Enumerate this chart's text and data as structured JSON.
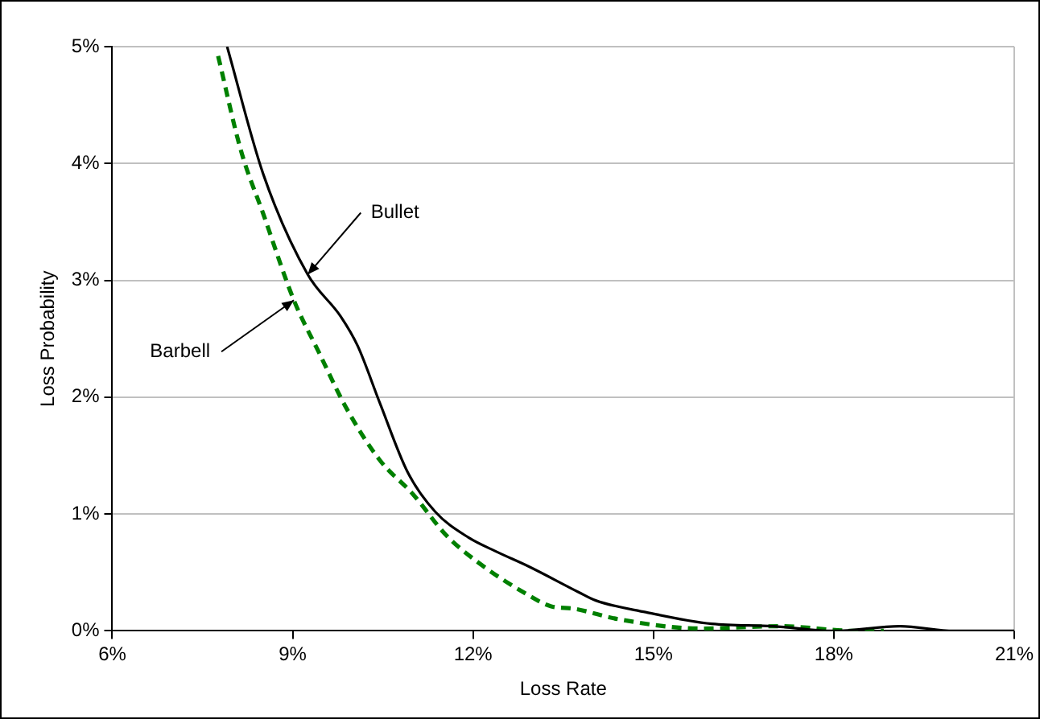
{
  "chart_data": {
    "type": "line",
    "xlabel": "Loss Rate",
    "ylabel": "Loss Probability",
    "xlim": [
      6,
      21
    ],
    "xticks": [
      {
        "value": 6,
        "label": "6%"
      },
      {
        "value": 9,
        "label": "9%"
      },
      {
        "value": 12,
        "label": "12%"
      },
      {
        "value": 15,
        "label": "15%"
      },
      {
        "value": 18,
        "label": "18%"
      },
      {
        "value": 21,
        "label": "21%"
      }
    ],
    "ylim": [
      0,
      5
    ],
    "yticks": [
      {
        "value": 0,
        "label": "0%"
      },
      {
        "value": 1,
        "label": "1%"
      },
      {
        "value": 2,
        "label": "2%"
      },
      {
        "value": 3,
        "label": "3%"
      },
      {
        "value": 4,
        "label": "4%"
      },
      {
        "value": 5,
        "label": "5%"
      }
    ],
    "grid": "y",
    "legend": false,
    "marker": "none",
    "series": [
      {
        "color": "#000000",
        "line_style": "solid",
        "x": [
          7.91,
          8.51,
          9.25,
          9.8,
          10.08,
          10.45,
          10.91,
          11.37,
          11.92,
          12.38,
          12.93,
          13.76,
          14.04,
          14.87,
          15.97,
          16.99,
          18.0,
          19.1,
          20.0,
          21.0
        ],
        "values": [
          5,
          3.91,
          3.05,
          2.69,
          2.44,
          1.95,
          1.36,
          1.02,
          0.8,
          0.68,
          0.55,
          0.33,
          0.26,
          0.16,
          0.06,
          0.04,
          0,
          0.04,
          0,
          0
        ]
      },
      {
        "color": "#008000",
        "line_style": "dashed",
        "x": [
          7.76,
          8.14,
          8.51,
          9.02,
          9.43,
          9.9,
          10.45,
          11.0,
          11.55,
          12.1,
          12.84,
          13.3,
          13.67,
          14.41,
          15.79,
          17.08,
          18.37,
          18.83
        ],
        "values": [
          4.92,
          4.11,
          3.57,
          2.83,
          2.39,
          1.9,
          1.46,
          1.17,
          0.82,
          0.58,
          0.33,
          0.21,
          0.19,
          0.1,
          0.02,
          0.04,
          0,
          0
        ]
      }
    ],
    "annotations": [
      {
        "text": "Bullet",
        "x": 9.25,
        "y": 3.05
      },
      {
        "text": "Barbell",
        "x": 9.02,
        "y": 2.83
      }
    ]
  }
}
